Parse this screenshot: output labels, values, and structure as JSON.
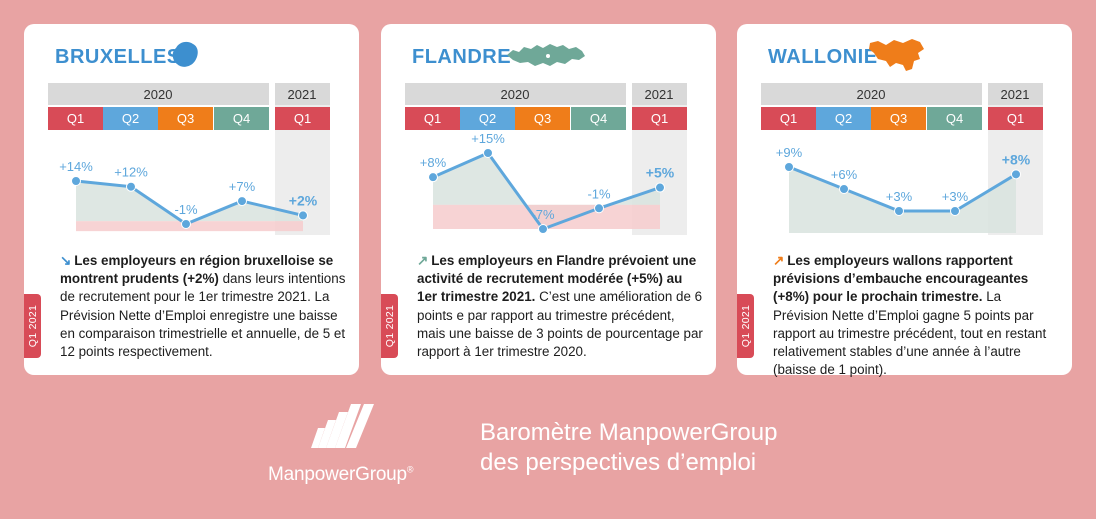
{
  "colors": {
    "background": "#e8a3a3",
    "card": "#ffffff",
    "q1": "#d84b57",
    "q2": "#5ea7dc",
    "q3": "#ef7d1a",
    "q4": "#6fa898",
    "header": "#d9d9d9",
    "line": "#5ea7dc",
    "area": "#d8e3de",
    "negative": "#f6cbcd",
    "title": "#3d8fcf"
  },
  "headers": {
    "year_2020": "2020",
    "year_2021": "2021",
    "quarters": [
      "Q1",
      "Q2",
      "Q3",
      "Q4"
    ],
    "quarter_2021": "Q1"
  },
  "cards": [
    {
      "region": "BRUXELLES",
      "map_icon": "brussels-map-icon",
      "arrow": "↘",
      "vertical_tab": "Q1 2021",
      "desc_bold": "Les employeurs en région bruxelloise se montrent prudents (+2%)",
      "desc_rest": " dans leurs intentions de recrutement pour le 1er trimestre 2021. La Prévision Nette d’Emploi enregistre une baisse en comparaison trimestrielle et annuelle, de 5 et 12 points respectivement."
    },
    {
      "region": "FLANDRE",
      "map_icon": "flanders-map-icon",
      "arrow": "↗",
      "vertical_tab": "Q1 2021",
      "desc_bold": "Les employeurs en Flandre prévoient une activité de recrutement modérée (+5%) au 1er trimestre 2021.",
      "desc_rest": " C’est une amélioration de 6 points e par rapport au trimestre précédent, mais une baisse de 3 points de pourcentage par rapport à 1er trimestre 2020."
    },
    {
      "region": "WALLONIE",
      "map_icon": "wallonia-map-icon",
      "arrow": "↗",
      "vertical_tab": "Q1 2021",
      "desc_bold": "Les employeurs wallons rapportent prévisions d’embauche encourageantes (+8%) pour le prochain trimestre.",
      "desc_rest": " La Prévision Nette d’Emploi gagne 5 points par rapport au trimestre précédent, tout en restant relativement stables d’une année à l’autre  (baisse de 1 point)."
    }
  ],
  "chart_data": [
    {
      "type": "line",
      "x": [
        "2020 Q1",
        "2020 Q2",
        "2020 Q3",
        "2020 Q4",
        "2021 Q1"
      ],
      "series": [
        {
          "name": "BRUXELLES",
          "values": [
            14,
            12,
            -1,
            7,
            2
          ]
        }
      ],
      "labels": [
        "+14%",
        "+12%",
        "-1%",
        "+7%",
        "+2%"
      ],
      "title": "",
      "ylim": [
        -2,
        16
      ]
    },
    {
      "type": "line",
      "x": [
        "2020 Q1",
        "2020 Q2",
        "2020 Q3",
        "2020 Q4",
        "2021 Q1"
      ],
      "series": [
        {
          "name": "FLANDRE",
          "values": [
            8,
            15,
            -7,
            -1,
            5
          ]
        }
      ],
      "labels": [
        "+8%",
        "+15%",
        "-7%",
        "-1%",
        "+5%"
      ],
      "title": "",
      "ylim": [
        -8,
        16
      ]
    },
    {
      "type": "line",
      "x": [
        "2020 Q1",
        "2020 Q2",
        "2020 Q3",
        "2020 Q4",
        "2021 Q1"
      ],
      "series": [
        {
          "name": "WALLONIE",
          "values": [
            9,
            6,
            3,
            3,
            8
          ]
        }
      ],
      "labels": [
        "+9%",
        "+6%",
        "+3%",
        "+3%",
        "+8%"
      ],
      "title": "",
      "ylim": [
        0,
        10
      ]
    }
  ],
  "footer": {
    "brand": "ManpowerGroup",
    "registered": "®",
    "tagline_line1": "Baromètre ManpowerGroup",
    "tagline_line2": "des perspectives d’emploi",
    "logo_icon": "manpowergroup-logo-icon"
  }
}
